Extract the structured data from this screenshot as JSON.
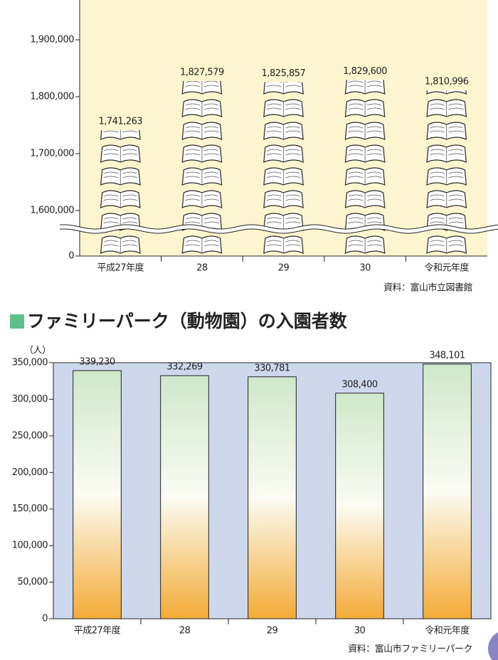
{
  "chart_data": [
    {
      "type": "bar",
      "categories": [
        "平成27年度",
        "28",
        "29",
        "30",
        "令和元年度"
      ],
      "values": [
        1741263,
        1827579,
        1825857,
        1829600,
        1810996
      ],
      "value_labels": [
        "1,741,263",
        "1,827,579",
        "1,825,857",
        "1,829,600",
        "1,810,996"
      ],
      "ylim": [
        1520000,
        1970000
      ],
      "yticks": [
        0,
        {
          "value": 1600000,
          "label": "1,600,000"
        },
        {
          "value": 1700000,
          "label": "1,700,000"
        },
        {
          "value": 1800000,
          "label": "1,800,000"
        },
        {
          "value": 1900000,
          "label": "1,900,000"
        }
      ],
      "axis_break": true,
      "background": "#fdf5cf",
      "source": "資料：富山市立図書館"
    },
    {
      "type": "bar",
      "title": "ファミリーパーク（動物園）の入園者数",
      "y_unit": "（人）",
      "categories": [
        "平成27年度",
        "28",
        "29",
        "30",
        "令和元年度"
      ],
      "values": [
        339230,
        332269,
        330781,
        308400,
        348101
      ],
      "value_labels": [
        "339,230",
        "332,269",
        "330,781",
        "308,400",
        "348,101"
      ],
      "ylim": [
        0,
        350000
      ],
      "yticks": [
        0,
        {
          "value": 50000,
          "label": "50,000"
        },
        {
          "value": 100000,
          "label": "100,000"
        },
        {
          "value": 150000,
          "label": "150,000"
        },
        {
          "value": 200000,
          "label": "200,000"
        },
        {
          "value": 250000,
          "label": "250,000"
        },
        {
          "value": 300000,
          "label": "300,000"
        },
        {
          "value": 350000,
          "label": "350,000"
        }
      ],
      "axis_break": false,
      "background": "#cdd8ec",
      "source": "資料：富山市ファミリーパーク"
    }
  ]
}
